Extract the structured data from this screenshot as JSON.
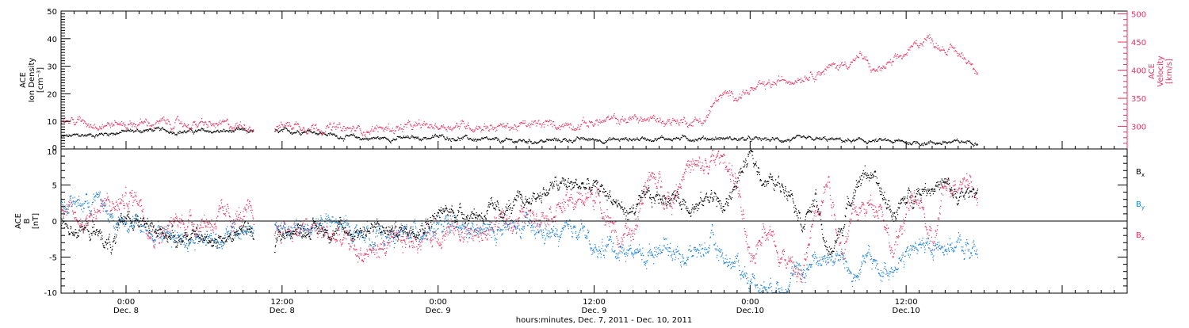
{
  "colors": {
    "black": "#000000",
    "pink": "#e8335f",
    "blue": "#1a7fd8"
  },
  "x_axis": {
    "label": "hours:minutes, Dec. 7, 2011 - Dec. 10, 2011",
    "ticks": [
      {
        "time": "Dec. 8 00:00",
        "hour": 24,
        "top": "0:00",
        "bottom": "Dec. 8"
      },
      {
        "time": "Dec. 8 12:00",
        "hour": 36,
        "top": "12:00",
        "bottom": "Dec. 8"
      },
      {
        "time": "Dec. 9 00:00",
        "hour": 48,
        "top": "0:00",
        "bottom": "Dec. 9"
      },
      {
        "time": "Dec. 9 12:00",
        "hour": 60,
        "top": "12:00",
        "bottom": "Dec. 9"
      },
      {
        "time": "Dec. 10 00:00",
        "hour": 72,
        "top": "0:00",
        "bottom": "Dec.10"
      },
      {
        "time": "Dec. 10 12:00",
        "hour": 84,
        "top": "12:00",
        "bottom": "Dec.10"
      }
    ]
  },
  "chart_data": [
    {
      "type": "scatter",
      "panel": "top",
      "y_left_label": [
        "ACE",
        "Ion Density",
        "[cm⁻³]"
      ],
      "y_right_label": [
        "ACE",
        "Velocity",
        "[km/s]"
      ],
      "y_left_ticks": [
        "0",
        "10",
        "20",
        "30",
        "40",
        "50"
      ],
      "y_right_ticks": [
        "300",
        "350",
        "400",
        "450",
        "500"
      ],
      "ylim_left": [
        0,
        50
      ],
      "ylim_right": [
        260,
        505
      ],
      "xlim_hours": [
        19,
        101
      ],
      "data_gap_hours": [
        33.8,
        35.4
      ],
      "series": [
        {
          "name": "Ion Density",
          "axis": "left",
          "color": "black",
          "x_hours": [
            19,
            22,
            24,
            26,
            28,
            30,
            33.8,
            35.4,
            38,
            40,
            42,
            44,
            46,
            48,
            50,
            52,
            54,
            56,
            58,
            60,
            62,
            64,
            66,
            68,
            70,
            72,
            74,
            76,
            78,
            80,
            82,
            84,
            86,
            88,
            89.5
          ],
          "values": [
            4.5,
            5.5,
            6.5,
            7,
            6.5,
            6.5,
            6.5,
            6,
            7,
            5,
            4,
            4,
            4,
            4.5,
            4,
            3,
            3,
            3,
            3.5,
            3.5,
            3.5,
            4,
            4,
            4,
            4,
            3.5,
            3.5,
            3.5,
            3.5,
            3,
            3,
            2.5,
            2.5,
            2.5,
            3
          ]
        },
        {
          "name": "Velocity",
          "axis": "right",
          "color": "pink",
          "x_hours": [
            19,
            21,
            23,
            25,
            27,
            29,
            31,
            33.8,
            35.4,
            37,
            39,
            41,
            43,
            45,
            47,
            49,
            51,
            53,
            55,
            57,
            59,
            61,
            63,
            65,
            67,
            68.5,
            69.5,
            71,
            73,
            75,
            77,
            79,
            80.5,
            81.5,
            83,
            84.5,
            85.5,
            86.5,
            88,
            89.5
          ],
          "values": [
            312,
            308,
            305,
            306,
            306,
            304,
            302,
            302,
            302,
            304,
            300,
            294,
            296,
            298,
            300,
            303,
            302,
            300,
            302,
            304,
            306,
            310,
            314,
            312,
            310,
            312,
            352,
            358,
            370,
            385,
            398,
            410,
            425,
            398,
            412,
            440,
            460,
            445,
            430,
            405
          ]
        }
      ]
    },
    {
      "type": "scatter",
      "panel": "bottom",
      "y_label": [
        "ACE",
        "B",
        "[nT]"
      ],
      "y_ticks": [
        "-10",
        "-5",
        "0",
        "5",
        "10"
      ],
      "ylim": [
        -10,
        10
      ],
      "xlim_hours": [
        19,
        101
      ],
      "zero_line": true,
      "data_gap_hours": [
        33.8,
        35.4
      ],
      "legend": [
        "Bx",
        "By",
        "Bz"
      ],
      "series": [
        {
          "name": "Bx",
          "color": "black",
          "x_hours": [
            19,
            20.5,
            22,
            23,
            24,
            25,
            26,
            27,
            28,
            30,
            32,
            33.8,
            35.4,
            37,
            39,
            41,
            43,
            45,
            47,
            49,
            51,
            53,
            55,
            57,
            59,
            61,
            62.5,
            64,
            66,
            68,
            69,
            70,
            71,
            72,
            73,
            74,
            75,
            76,
            77,
            78,
            79,
            80,
            81,
            82,
            83,
            84,
            85,
            86,
            87,
            88,
            89,
            89.5
          ],
          "values": [
            -0.5,
            -1,
            -2,
            -3.5,
            1,
            0,
            -1.5,
            -1.5,
            -2,
            -2.5,
            -2,
            -1,
            -2.5,
            -1,
            -1,
            -1.5,
            -1,
            -1.5,
            0,
            1.5,
            1,
            1.5,
            3,
            5,
            5,
            4,
            1,
            3,
            3.5,
            2,
            4,
            1.5,
            6,
            9,
            6,
            5,
            5,
            0,
            3,
            -5,
            -1,
            5,
            7,
            4,
            1,
            3,
            4.5,
            5,
            5,
            3,
            4,
            5
          ]
        },
        {
          "name": "By",
          "color": "blue",
          "x_hours": [
            19,
            20.5,
            22,
            23,
            24,
            25,
            26,
            27,
            28,
            30,
            32,
            33.8,
            35.4,
            37,
            39,
            41,
            43,
            45,
            47,
            49,
            51,
            53,
            55,
            57,
            58,
            59,
            60,
            61,
            62,
            63,
            64,
            65,
            66,
            67,
            68,
            69,
            70,
            71,
            72,
            73,
            74,
            75,
            76,
            77,
            78,
            79,
            80,
            81,
            82,
            83,
            84,
            85,
            86,
            87,
            88,
            89,
            89.5
          ],
          "values": [
            2.5,
            2.5,
            3,
            0,
            -1,
            0,
            -1,
            -1.5,
            -2,
            -2.5,
            -2,
            -1,
            -1,
            -1.5,
            0,
            -1,
            -2,
            -2,
            -1,
            -1,
            -1.5,
            -1,
            -1,
            -2,
            -2,
            0,
            -5,
            -3,
            -4,
            -4,
            -5,
            -3,
            -4,
            -5,
            -4,
            -3,
            -5,
            -6,
            -8,
            -9,
            -9,
            -8,
            -7,
            -5,
            -5,
            -5,
            -8,
            -5,
            -7,
            -6,
            -5,
            -3,
            -4,
            -3,
            -3.5,
            -4,
            -4.5
          ]
        },
        {
          "name": "Bz",
          "color": "pink",
          "x_hours": [
            19,
            20.5,
            22,
            23,
            24,
            25,
            26,
            27,
            28,
            30,
            32,
            33.8,
            35.4,
            37,
            39,
            41,
            42,
            43,
            45,
            47,
            49,
            51,
            53,
            55,
            57,
            59,
            60,
            61,
            62,
            63,
            64,
            65,
            66,
            67,
            68,
            69,
            70,
            71,
            72,
            73,
            74,
            75,
            76,
            77,
            78,
            79,
            80,
            81,
            82,
            83,
            84,
            85,
            86,
            87,
            88,
            89,
            89.5
          ],
          "values": [
            1.5,
            0,
            2,
            2,
            3,
            3.5,
            -1.5,
            -1.5,
            0,
            0,
            0.5,
            0.5,
            -1,
            -1,
            -1.5,
            -3,
            -4.5,
            -4,
            -3,
            -2,
            -1,
            -2,
            0,
            1,
            2,
            3,
            4,
            1,
            -3,
            -2,
            6,
            5,
            3,
            8,
            7,
            8,
            9,
            5,
            -7,
            0,
            -3,
            -6,
            -8,
            2,
            6,
            -4,
            1,
            2,
            3,
            -5,
            2,
            3,
            -4,
            5,
            6,
            6,
            2
          ]
        }
      ]
    }
  ]
}
